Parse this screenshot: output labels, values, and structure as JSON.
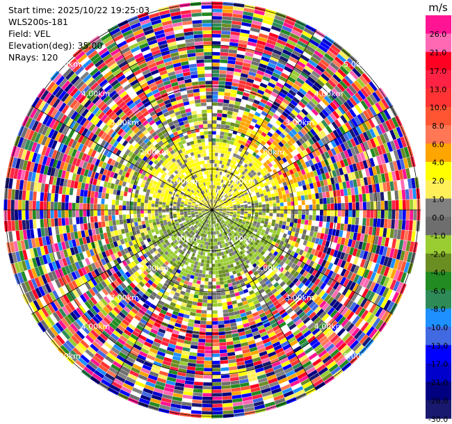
{
  "header": {
    "start_time": "Start time: 2025/10/22 19:25:03",
    "instrument": "WLS200s-181",
    "field": "Field: VEL",
    "elevation": "Elevation(deg): 35.00",
    "nrays": "NRays: 120"
  },
  "range_rings": {
    "labels": [
      "1.00km",
      "2.00km",
      "3.00km",
      "4.00km",
      "5.00km"
    ]
  },
  "colorbar": {
    "unit": "m/s",
    "ticks": [
      "26.0",
      "21.0",
      "17.0",
      "13.0",
      "10.0",
      "8.0",
      "6.0",
      "4.0",
      "2.0",
      "1.0",
      "0.0",
      "-1.0",
      "-2.0",
      "-4.0",
      "-6.0",
      "-8.0",
      "-10.0",
      "-13.0",
      "-17.0",
      "-21.0",
      "-26.0",
      "-30.0"
    ],
    "colors": [
      "#ff1493",
      "#ff69b4",
      "#ff0022",
      "#ff2244",
      "#ff3333",
      "#ff5533",
      "#ff7755",
      "#ffa500",
      "#ffff00",
      "#fff05a",
      "#808080",
      "#6e6e6e",
      "#9acd32",
      "#6b8e23",
      "#228b22",
      "#2e8b57",
      "#1e90ff",
      "#4169e1",
      "#0000ff",
      "#0000cd",
      "#000080",
      "#191970"
    ]
  }
}
